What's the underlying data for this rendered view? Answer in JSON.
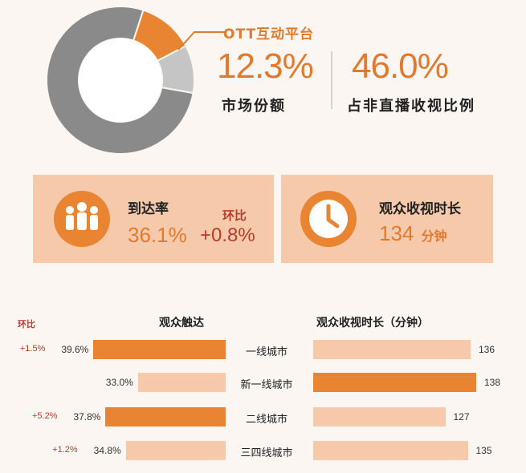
{
  "donut": {
    "slices": [
      {
        "name": "OTT互动平台",
        "value": 12.3,
        "color": "#e98532"
      },
      {
        "name": "other-light",
        "value": 10.5,
        "color": "#c5c5c5"
      },
      {
        "name": "other-dark",
        "value": 77.2,
        "color": "#8a8a8a"
      }
    ]
  },
  "header": {
    "callout_label": "OTT互动平台",
    "share_value": "12.3%",
    "share_label": "市场份额",
    "nonlive_value": "46.0%",
    "nonlive_label": "占非直播收视比例"
  },
  "kpis": {
    "reach_label": "到达率",
    "reach_value": "36.1%",
    "change_label": "环比",
    "change_value": "+0.8%",
    "duration_label": "观众收视时长",
    "duration_value": "134",
    "duration_unit": "分钟"
  },
  "bars": {
    "change_header": "环比",
    "left_title": "观众触达",
    "right_title": "观众收视时长（分钟）"
  },
  "chart_data": {
    "type": "bar",
    "categories": [
      "一线城市",
      "新一线城市",
      "二线城市",
      "三四线城市"
    ],
    "series": [
      {
        "name": "观众触达",
        "values": [
          39.6,
          33.0,
          37.8,
          34.8
        ],
        "labels": [
          "39.6%",
          "33.0%",
          "37.8%",
          "34.8%"
        ],
        "changes": [
          "+1.5%",
          "",
          "+5.2%",
          "+1.2%"
        ]
      },
      {
        "name": "观众收视时长（分钟）",
        "values": [
          136,
          138,
          127,
          135
        ],
        "labels": [
          "136",
          "138",
          "127",
          "135"
        ]
      }
    ],
    "colors": {
      "highlight": "#e98532",
      "normal": "#f6c9ab"
    },
    "highlight": [
      [
        true,
        false,
        true,
        false
      ],
      [
        false,
        true,
        false,
        false
      ]
    ]
  }
}
